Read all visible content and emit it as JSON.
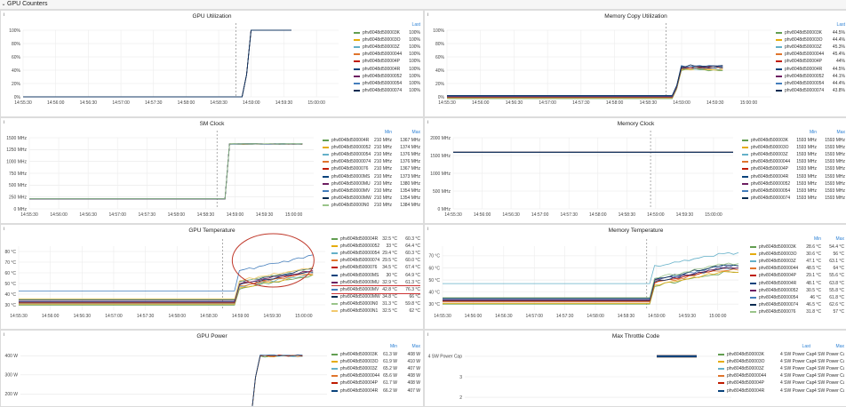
{
  "row_title": "GPU Counters",
  "colors": [
    "#629e51",
    "#e5ac0e",
    "#64b0c8",
    "#e0752d",
    "#bf1b00",
    "#0a437c",
    "#6d1f62",
    "#447ebc",
    "#052b51",
    "#9ac48a",
    "#f2c96d",
    "#65c5db"
  ],
  "panels": [
    {
      "id": "gpu-utilization",
      "title": "GPU Utilization",
      "yticks": [
        "100%",
        "80%",
        "60%",
        "40%",
        "20%",
        "0%"
      ],
      "ymin": 0,
      "ymax": 100,
      "xticks": [
        "14:55:30",
        "14:56:00",
        "14:56:30",
        "14:57:00",
        "14:57:30",
        "14:58:00",
        "14:58:30",
        "14:59:00",
        "14:59:30",
        "15:00:00"
      ],
      "marker": 0.675,
      "data": {
        "base": 0,
        "rise_at": 0.705,
        "high": 100,
        "end": 0.85,
        "noise": 0
      },
      "legend_headers": [
        "Last"
      ],
      "legend": [
        {
          "name": "phv8048d500003K",
          "vals": [
            "100%"
          ]
        },
        {
          "name": "phv8048d500003O",
          "vals": [
            "100%"
          ]
        },
        {
          "name": "phv8048d500003Z",
          "vals": [
            "100%"
          ]
        },
        {
          "name": "phv8048d50000044",
          "vals": [
            "100%"
          ]
        },
        {
          "name": "phv8048d500004P",
          "vals": [
            "100%"
          ]
        },
        {
          "name": "phv8048d500004R",
          "vals": [
            "100%"
          ]
        },
        {
          "name": "phv8048d50000052",
          "vals": [
            "100%"
          ]
        },
        {
          "name": "phv8048d50000054",
          "vals": [
            "100%"
          ]
        },
        {
          "name": "phv8048d50000074",
          "vals": [
            "100%"
          ]
        }
      ]
    },
    {
      "id": "memory-copy-utilization",
      "title": "Memory Copy Utilization",
      "yticks": [
        "100%",
        "80%",
        "60%",
        "40%",
        "20%",
        "0%"
      ],
      "ymin": 0,
      "ymax": 100,
      "xticks": [
        "14:55:30",
        "14:56:00",
        "14:56:30",
        "14:57:00",
        "14:57:30",
        "14:58:00",
        "14:58:30",
        "14:59:00",
        "14:59:30",
        "15:00:00"
      ],
      "marker": 0.675,
      "data": {
        "base": 0,
        "rise_at": 0.705,
        "high": 44,
        "end": 0.85,
        "noise": 3
      },
      "legend_headers": [
        "Last"
      ],
      "legend": [
        {
          "name": "phv8048d500003K",
          "vals": [
            "44.5%"
          ]
        },
        {
          "name": "phv8048d500003O",
          "vals": [
            "44.4%"
          ]
        },
        {
          "name": "phv8048d500003Z",
          "vals": [
            "45.3%"
          ]
        },
        {
          "name": "phv8048d50000044",
          "vals": [
            "45.4%"
          ]
        },
        {
          "name": "phv8048d500004P",
          "vals": [
            "44%"
          ]
        },
        {
          "name": "phv8048d500004R",
          "vals": [
            "44.5%"
          ]
        },
        {
          "name": "phv8048d50000052",
          "vals": [
            "44.1%"
          ]
        },
        {
          "name": "phv8048d50000054",
          "vals": [
            "44.4%"
          ]
        },
        {
          "name": "phv8048d50000074",
          "vals": [
            "43.8%"
          ]
        }
      ]
    },
    {
      "id": "sm-clock",
      "title": "SM Clock",
      "yticks": [
        "1500 MHz",
        "1250 MHz",
        "1000 MHz",
        "750 MHz",
        "500 MHz",
        "250 MHz",
        "0 MHz"
      ],
      "ymin": 0,
      "ymax": 1500,
      "xticks": [
        "14:55:30",
        "14:56:00",
        "14:56:30",
        "14:57:00",
        "14:57:30",
        "14:58:00",
        "14:58:30",
        "14:59:00",
        "14:59:30",
        "15:00:00"
      ],
      "marker": 0.66,
      "data": {
        "base": 210,
        "rise_at": 0.69,
        "high": 1370,
        "end": 0.96,
        "noise": 8
      },
      "legend_headers": [
        "Min",
        "Max"
      ],
      "legend": [
        {
          "name": "phv8048d500004R",
          "vals": [
            "210 MHz",
            "1367 MHz"
          ]
        },
        {
          "name": "phv8048d50000052",
          "vals": [
            "210 MHz",
            "1374 MHz"
          ]
        },
        {
          "name": "phv8048d50000054",
          "vals": [
            "210 MHz",
            "1376 MHz"
          ]
        },
        {
          "name": "phv8048d50000074",
          "vals": [
            "210 MHz",
            "1376 MHz"
          ]
        },
        {
          "name": "phv8048d5000076",
          "vals": [
            "210 MHz",
            "1367 MHz"
          ]
        },
        {
          "name": "phv8048d50000MS",
          "vals": [
            "210 MHz",
            "1373 MHz"
          ]
        },
        {
          "name": "phv8048d50000MU",
          "vals": [
            "210 MHz",
            "1380 MHz"
          ]
        },
        {
          "name": "phv8048d50000MV",
          "vals": [
            "210 MHz",
            "1354 MHz"
          ]
        },
        {
          "name": "phv8048d50000MW",
          "vals": [
            "210 MHz",
            "1354 MHz"
          ]
        },
        {
          "name": "phv8048d50000N0",
          "vals": [
            "210 MHz",
            "1384 MHz"
          ]
        }
      ]
    },
    {
      "id": "memory-clock",
      "title": "Memory Clock",
      "yticks": [
        "2000 MHz",
        "1500 MHz",
        "1000 MHz",
        "500 MHz",
        "0 MHz"
      ],
      "ymin": 0,
      "ymax": 2000,
      "xticks": [
        "14:55:30",
        "14:56:00",
        "14:56:30",
        "14:57:00",
        "14:57:30",
        "14:58:00",
        "14:58:30",
        "14:59:00",
        "14:59:30",
        "15:00:00"
      ],
      "marker": 0.705,
      "data": {
        "base": 1593,
        "rise_at": 2,
        "high": 1593,
        "end": 1.0,
        "noise": 0
      },
      "legend_headers": [
        "Min",
        "Max"
      ],
      "legend": [
        {
          "name": "phv8048d500003K",
          "vals": [
            "1593 MHz",
            "1593 MHz"
          ]
        },
        {
          "name": "phv8048d500003O",
          "vals": [
            "1593 MHz",
            "1593 MHz"
          ]
        },
        {
          "name": "phv8048d500003Z",
          "vals": [
            "1593 MHz",
            "1593 MHz"
          ]
        },
        {
          "name": "phv8048d50000044",
          "vals": [
            "1593 MHz",
            "1593 MHz"
          ]
        },
        {
          "name": "phv8048d500004P",
          "vals": [
            "1593 MHz",
            "1593 MHz"
          ]
        },
        {
          "name": "phv8048d500004R",
          "vals": [
            "1593 MHz",
            "1593 MHz"
          ]
        },
        {
          "name": "phv8048d50000052",
          "vals": [
            "1593 MHz",
            "1593 MHz"
          ]
        },
        {
          "name": "phv8048d50000054",
          "vals": [
            "1593 MHz",
            "1593 MHz"
          ]
        },
        {
          "name": "phv8048d50000074",
          "vals": [
            "1593 MHz",
            "1593 MHz"
          ]
        }
      ]
    },
    {
      "id": "gpu-temperature",
      "title": "GPU Temperature",
      "yticks": [
        "80 °C",
        "70 °C",
        "60 °C",
        "50 °C",
        "40 °C",
        "30 °C"
      ],
      "ymin": 25,
      "ymax": 85,
      "xticks": [
        "14:55:30",
        "14:56:00",
        "14:56:30",
        "14:57:00",
        "14:57:30",
        "14:58:00",
        "14:58:30",
        "14:59:00",
        "14:59:30",
        "15:00:00"
      ],
      "marker": 0.665,
      "data": {
        "base": 33,
        "rise_at": 0.71,
        "high": 62,
        "end": 0.96,
        "noise": 2,
        "outlier_base": 43,
        "outlier_high": 76
      },
      "legend_headers": [],
      "legend": [
        {
          "name": "phv8048d500004R",
          "vals": [
            "32.5 °C",
            "60.3 °C"
          ]
        },
        {
          "name": "phv8048d50000052",
          "vals": [
            "33 °C",
            "64.4 °C"
          ]
        },
        {
          "name": "phv8048d50000054",
          "vals": [
            "29.4 °C",
            "60.3 °C"
          ]
        },
        {
          "name": "phv8048d50000074",
          "vals": [
            "29.5 °C",
            "60.0 °C"
          ]
        },
        {
          "name": "phv8048d5000076",
          "vals": [
            "34.5 °C",
            "67.4 °C"
          ]
        },
        {
          "name": "phv8048d50000MS",
          "vals": [
            "30 °C",
            "64.9 °C"
          ]
        },
        {
          "name": "phv8048d50000MU",
          "vals": [
            "32.9 °C",
            "61.3 °C"
          ]
        },
        {
          "name": "phv8048d50000MV",
          "vals": [
            "42.8 °C",
            "76.3 °C"
          ]
        },
        {
          "name": "phv8048d50000MW",
          "vals": [
            "34.8 °C",
            "66 °C"
          ]
        },
        {
          "name": "phv8048d50000N0",
          "vals": [
            "31.3 °C",
            "59.8 °C"
          ]
        },
        {
          "name": "phv8048d50000N1",
          "vals": [
            "32.5 °C",
            "62 °C"
          ]
        }
      ],
      "highlight_row": 7
    },
    {
      "id": "memory-temperature",
      "title": "Memory Temperature",
      "yticks": [
        "70 °C",
        "60 °C",
        "50 °C",
        "40 °C",
        "30 °C"
      ],
      "ymin": 25,
      "ymax": 78,
      "xticks": [
        "14:55:30",
        "14:56:00",
        "14:56:30",
        "14:57:00",
        "14:57:30",
        "14:58:00",
        "14:58:30",
        "14:59:00",
        "14:59:30",
        "15:00:00"
      ],
      "marker": 0.69,
      "data": {
        "base": 33,
        "rise_at": 0.7,
        "high": 60,
        "end": 1.0,
        "noise": 2,
        "outlier_base": 47,
        "outlier_high": 72
      },
      "legend_headers": [
        "Min",
        "Max"
      ],
      "legend": [
        {
          "name": "phv8048d500003K",
          "vals": [
            "28.6 °C",
            "54.4 °C"
          ]
        },
        {
          "name": "phv8048d500003O",
          "vals": [
            "30.6 °C",
            "56 °C"
          ]
        },
        {
          "name": "phv8048d500003Z",
          "vals": [
            "47.1 °C",
            "63.1 °C"
          ]
        },
        {
          "name": "phv8048d50000044",
          "vals": [
            "48.5 °C",
            "64 °C"
          ]
        },
        {
          "name": "phv8048d500004P",
          "vals": [
            "29.1 °C",
            "55.6 °C"
          ]
        },
        {
          "name": "phv8048d500004R",
          "vals": [
            "48.1 °C",
            "63.8 °C"
          ]
        },
        {
          "name": "phv8048d50000052",
          "vals": [
            "30.5 °C",
            "55.8 °C"
          ]
        },
        {
          "name": "phv8048d50000054",
          "vals": [
            "46 °C",
            "61.8 °C"
          ]
        },
        {
          "name": "phv8048d50000074",
          "vals": [
            "46.5 °C",
            "62.6 °C"
          ]
        },
        {
          "name": "phv8048d5000076",
          "vals": [
            "31.8 °C",
            "57 °C"
          ]
        }
      ]
    },
    {
      "id": "gpu-power",
      "title": "GPU Power",
      "yticks": [
        "400 W",
        "300 W",
        "200 W"
      ],
      "ymin": 150,
      "ymax": 430,
      "xticks": [],
      "marker": -1,
      "data": {
        "base": 60,
        "rise_at": 0.76,
        "high": 400,
        "end": 0.92,
        "noise": 8
      },
      "legend_headers": [
        "Min",
        "Max"
      ],
      "legend": [
        {
          "name": "phv8048d500003K",
          "vals": [
            "61.3 W",
            "408 W"
          ]
        },
        {
          "name": "phv8048d500003O",
          "vals": [
            "61.9 W",
            "410 W"
          ]
        },
        {
          "name": "phv8048d500003Z",
          "vals": [
            "65.2 W",
            "407 W"
          ]
        },
        {
          "name": "phv8048d50000044",
          "vals": [
            "65.6 W",
            "408 W"
          ]
        },
        {
          "name": "phv8048d500004P",
          "vals": [
            "61.7 W",
            "408 W"
          ]
        },
        {
          "name": "phv8048d500004R",
          "vals": [
            "66.2 W",
            "407 W"
          ]
        }
      ]
    },
    {
      "id": "max-throttle-code",
      "title": "Max Throttle Code",
      "yticks": [
        "4 SW Power Cap",
        "3",
        "2"
      ],
      "ymin": 1.7,
      "ymax": 4.3,
      "xticks": [],
      "marker": -1,
      "data": {
        "base": 4,
        "rise_at": 0.72,
        "high": 4,
        "end": 0.87,
        "noise": 0,
        "start": 0.72
      },
      "legend_headers": [
        "Last",
        "Max"
      ],
      "legend": [
        {
          "name": "phv8048d500003K",
          "vals": [
            "4 SW Power Cap",
            "4 SW Power Cap"
          ]
        },
        {
          "name": "phv8048d500003O",
          "vals": [
            "4 SW Power Cap",
            "4 SW Power Cap"
          ]
        },
        {
          "name": "phv8048d500003Z",
          "vals": [
            "4 SW Power Cap",
            "4 SW Power Cap"
          ]
        },
        {
          "name": "phv8048d50000044",
          "vals": [
            "4 SW Power Cap",
            "4 SW Power Cap"
          ]
        },
        {
          "name": "phv8048d500004P",
          "vals": [
            "4 SW Power Cap",
            "4 SW Power Cap"
          ]
        },
        {
          "name": "phv8048d500004R",
          "vals": [
            "4 SW Power Cap",
            "4 SW Power Cap"
          ]
        }
      ]
    }
  ]
}
